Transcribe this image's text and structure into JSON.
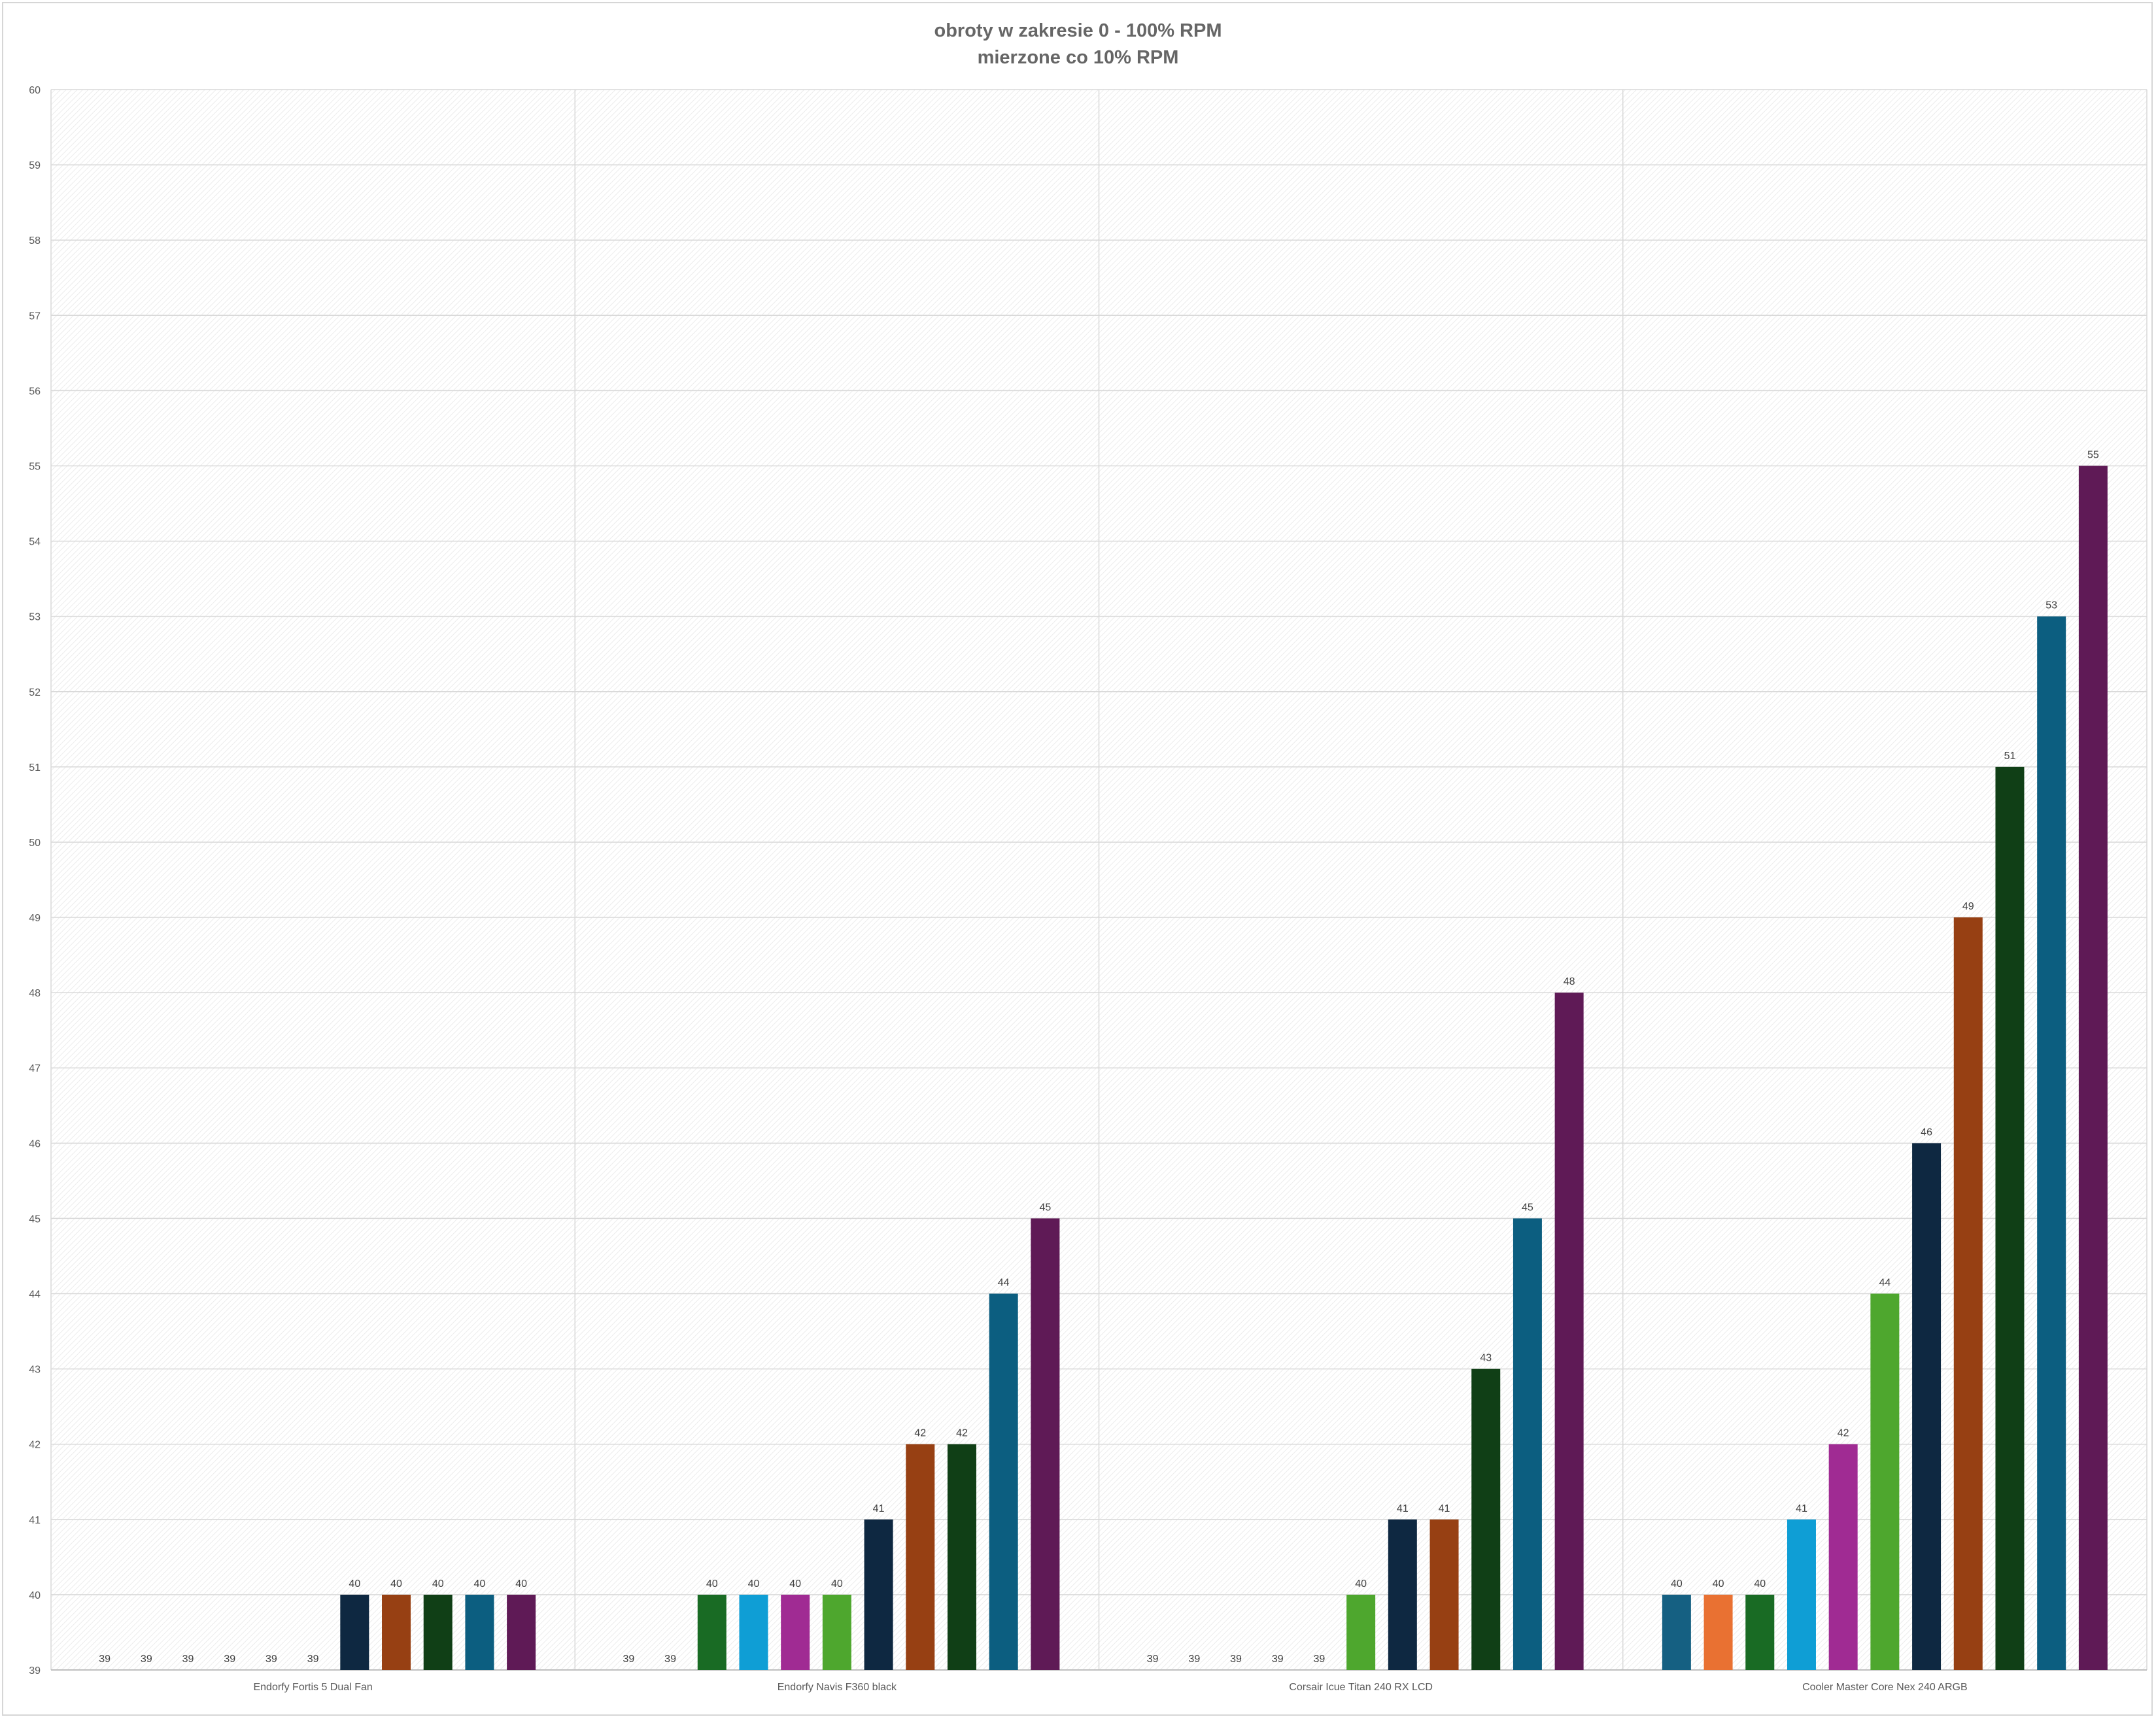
{
  "chart_data": {
    "type": "bar",
    "title": "obroty w zakresie 0 - 100% RPM",
    "subtitle": "mierzone co 10% RPM",
    "xlabel": "",
    "ylabel": "",
    "ylim": [
      39,
      60
    ],
    "ytick_step": 1,
    "grid": true,
    "legend": "none",
    "categories": [
      "Endorfy Fortis 5 Dual Fan",
      "Endorfy Navis F360 black",
      "Corsair Icue Titan 240 RX LCD",
      "Cooler Master Core Nex 240 ARGB"
    ],
    "series": [
      {
        "color": "#156082",
        "values": [
          39,
          39,
          39,
          40
        ]
      },
      {
        "color": "#E97132",
        "values": [
          39,
          39,
          39,
          40
        ]
      },
      {
        "color": "#196B24",
        "values": [
          39,
          40,
          39,
          40
        ]
      },
      {
        "color": "#0F9ED5",
        "values": [
          39,
          40,
          39,
          41
        ]
      },
      {
        "color": "#A02B93",
        "values": [
          39,
          40,
          39,
          42
        ]
      },
      {
        "color": "#4EA72E",
        "values": [
          39,
          40,
          40,
          44
        ]
      },
      {
        "color": "#0E2841",
        "values": [
          40,
          41,
          41,
          46
        ]
      },
      {
        "color": "#974013",
        "values": [
          40,
          42,
          41,
          49
        ]
      },
      {
        "color": "#103F16",
        "values": [
          40,
          42,
          43,
          51
        ]
      },
      {
        "color": "#0C5E80",
        "values": [
          40,
          44,
          45,
          53
        ]
      },
      {
        "color": "#5F1A56",
        "values": [
          40,
          45,
          48,
          55
        ]
      }
    ]
  }
}
